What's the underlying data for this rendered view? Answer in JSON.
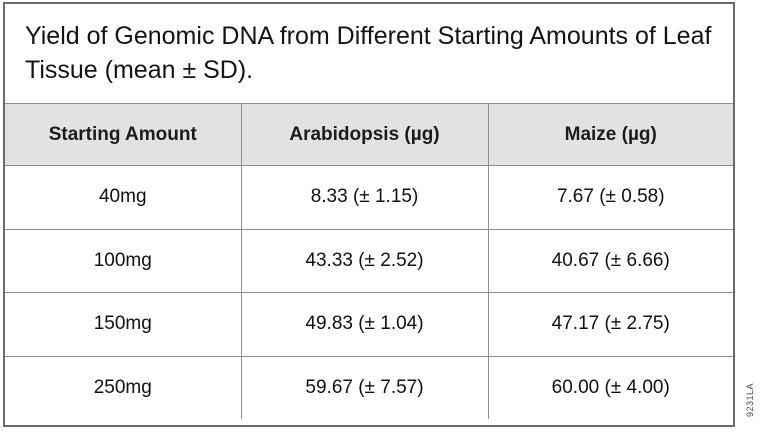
{
  "figure": {
    "code": "9231LA"
  },
  "colors": {
    "header_bg": "#e2e2e2",
    "inner_border": "#8e8e8e",
    "outer_border": "#6b6b6b",
    "text": "#141414"
  },
  "chart_data": {
    "type": "table",
    "title": "Yield of Genomic DNA from Different Starting Amounts of Leaf Tissue (mean ± SD).",
    "columns": [
      "Starting Amount",
      "Arabidopsis (µg)",
      "Maize (µg)"
    ],
    "rows": [
      [
        "40mg",
        "8.33 (± 1.15)",
        "7.67 (± 0.58)"
      ],
      [
        "100mg",
        "43.33 (± 2.52)",
        "40.67 (± 6.66)"
      ],
      [
        "150mg",
        "49.83 (± 1.04)",
        "47.17 (± 2.75)"
      ],
      [
        "250mg",
        "59.67 (± 7.57)",
        "60.00 (± 4.00)"
      ]
    ]
  }
}
